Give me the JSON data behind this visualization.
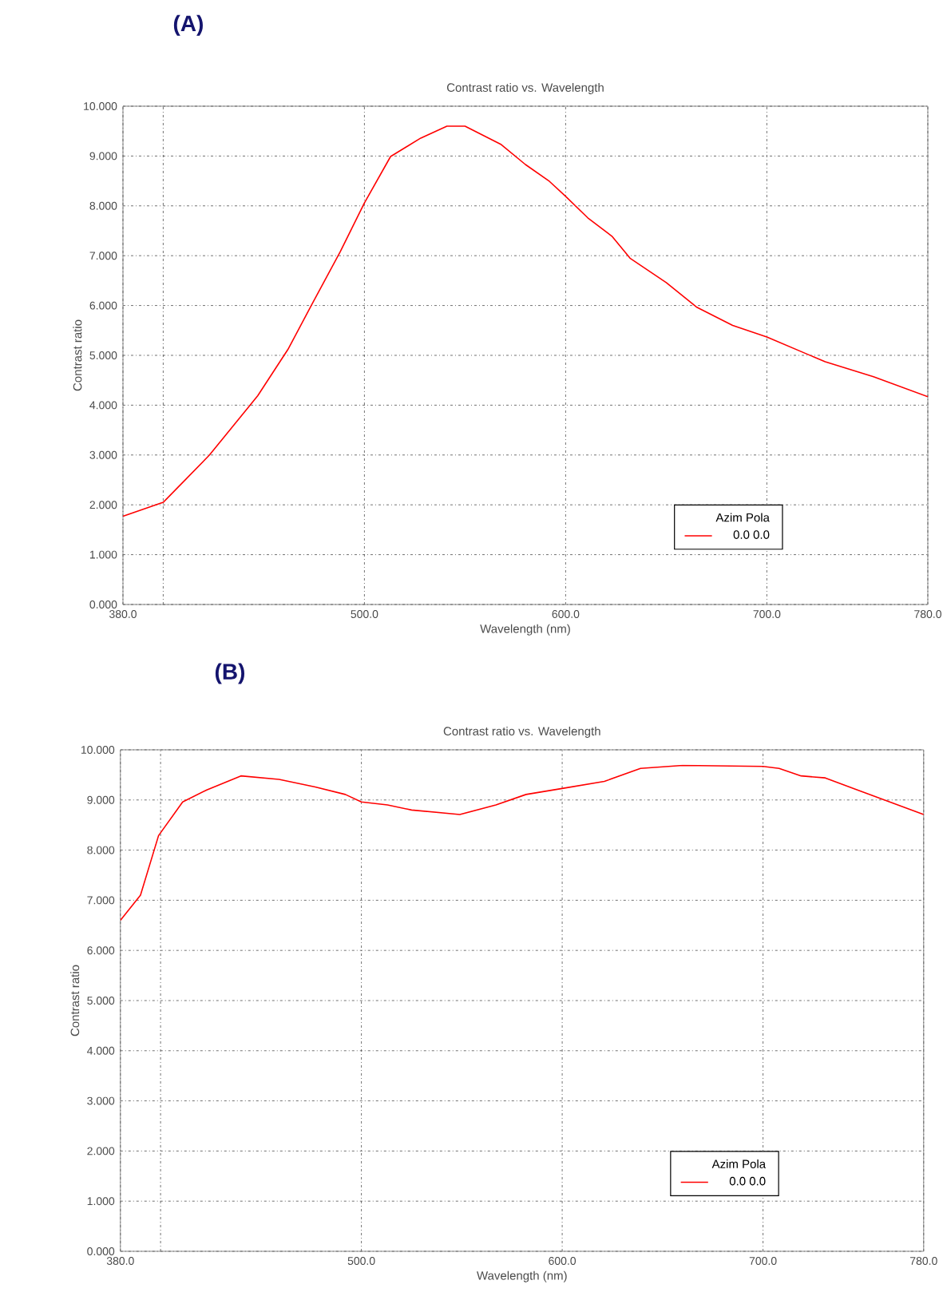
{
  "chart_data": [
    {
      "type": "line",
      "title": "Contrast ratio vs. Wavelength",
      "xlabel": "Wavelength (nm)",
      "ylabel": "Contrast ratio",
      "legend_title": "Azim   Pola",
      "annotations": [
        "(A)"
      ],
      "xlim": [
        380,
        780
      ],
      "ylim": [
        0,
        10
      ],
      "xticks": [
        {
          "value": 380,
          "label": "380.0"
        },
        {
          "value": 400,
          "label": null
        },
        {
          "value": 500,
          "label": "500.0"
        },
        {
          "value": 600,
          "label": "600.0"
        },
        {
          "value": 700,
          "label": "700.0"
        },
        {
          "value": 780,
          "label": "780.0"
        }
      ],
      "yticks": [
        {
          "value": 0,
          "label": "0.000"
        },
        {
          "value": 1,
          "label": "1.000"
        },
        {
          "value": 2,
          "label": "2.000"
        },
        {
          "value": 3,
          "label": "3.000"
        },
        {
          "value": 4,
          "label": "4.000"
        },
        {
          "value": 5,
          "label": "5.000"
        },
        {
          "value": 6,
          "label": "6.000"
        },
        {
          "value": 7,
          "label": "7.000"
        },
        {
          "value": 8,
          "label": "8.000"
        },
        {
          "value": 9,
          "label": "9.000"
        },
        {
          "value": 10,
          "label": "10.000"
        }
      ],
      "grid": true,
      "legend": "bottom right",
      "marker": "none",
      "line_style": "solid",
      "series": [
        {
          "name": "0.0   0.0",
          "color": "#ff0000",
          "x": [
            380,
            400,
            423,
            447,
            462,
            474,
            488,
            500,
            513,
            528,
            541,
            550,
            568,
            580,
            592,
            600,
            611,
            623,
            632,
            650,
            665,
            683,
            700,
            729,
            753,
            780
          ],
          "values": [
            1.77,
            2.05,
            3.0,
            4.19,
            5.12,
            6.03,
            7.08,
            8.06,
            8.99,
            9.36,
            9.6,
            9.6,
            9.23,
            8.83,
            8.49,
            8.19,
            7.76,
            7.39,
            6.95,
            6.46,
            5.97,
            5.6,
            5.37,
            4.87,
            4.57,
            4.17
          ]
        }
      ]
    },
    {
      "type": "line",
      "title": "Contrast ratio vs. Wavelength",
      "xlabel": "Wavelength (nm)",
      "ylabel": "Contrast ratio",
      "legend_title": "Azim   Pola",
      "annotations": [
        "(B)"
      ],
      "xlim": [
        380,
        780
      ],
      "ylim": [
        0,
        10
      ],
      "xticks": [
        {
          "value": 380,
          "label": "380.0"
        },
        {
          "value": 400,
          "label": null
        },
        {
          "value": 500,
          "label": "500.0"
        },
        {
          "value": 600,
          "label": "600.0"
        },
        {
          "value": 700,
          "label": "700.0"
        },
        {
          "value": 780,
          "label": "780.0"
        }
      ],
      "yticks": [
        {
          "value": 0,
          "label": "0.000"
        },
        {
          "value": 1,
          "label": "1.000"
        },
        {
          "value": 2,
          "label": "2.000"
        },
        {
          "value": 3,
          "label": "3.000"
        },
        {
          "value": 4,
          "label": "4.000"
        },
        {
          "value": 5,
          "label": "5.000"
        },
        {
          "value": 6,
          "label": "6.000"
        },
        {
          "value": 7,
          "label": "7.000"
        },
        {
          "value": 8,
          "label": "8.000"
        },
        {
          "value": 9,
          "label": "9.000"
        },
        {
          "value": 10,
          "label": "10.000"
        }
      ],
      "grid": true,
      "legend": "bottom right",
      "marker": "none",
      "line_style": "solid",
      "series": [
        {
          "name": "0.0   0.0",
          "color": "#ff0000",
          "x": [
            380,
            390,
            399,
            411,
            423,
            440,
            459,
            477,
            492,
            500,
            513,
            525,
            549,
            567,
            582,
            600,
            621,
            639,
            660,
            700,
            708,
            719,
            731,
            747,
            780
          ],
          "values": [
            6.6,
            7.1,
            8.29,
            8.96,
            9.2,
            9.48,
            9.41,
            9.26,
            9.11,
            8.96,
            8.9,
            8.8,
            8.71,
            8.9,
            9.11,
            9.23,
            9.37,
            9.63,
            9.69,
            9.67,
            9.63,
            9.48,
            9.44,
            9.2,
            8.71
          ]
        }
      ]
    }
  ]
}
